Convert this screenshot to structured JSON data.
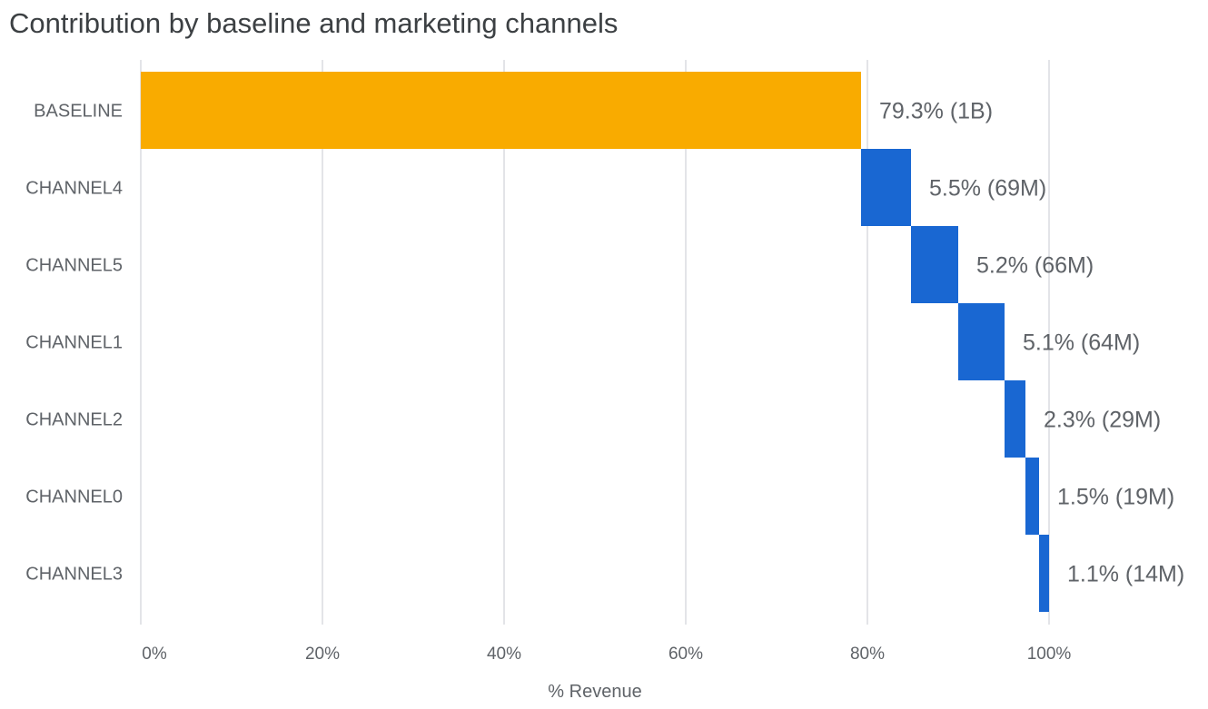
{
  "chart_data": {
    "type": "waterfall",
    "title": "Contribution by baseline and marketing channels",
    "xlabel": "% Revenue",
    "ylabel": "",
    "xlim": [
      0,
      100
    ],
    "x_ticks": [
      "0%",
      "20%",
      "40%",
      "60%",
      "80%",
      "100%"
    ],
    "x_tick_values": [
      0,
      20,
      40,
      60,
      80,
      100
    ],
    "grid": "vertical",
    "categories": [
      "BASELINE",
      "CHANNEL4",
      "CHANNEL5",
      "CHANNEL1",
      "CHANNEL2",
      "CHANNEL0",
      "CHANNEL3"
    ],
    "values": [
      79.3,
      5.5,
      5.2,
      5.1,
      2.3,
      1.5,
      1.1
    ],
    "data_labels": [
      "79.3% (1B)",
      "5.5% (69M)",
      "5.2% (66M)",
      "5.1% (64M)",
      "2.3% (29M)",
      "1.5% (19M)",
      "1.1% (14M)"
    ],
    "colors": {
      "baseline": "#F9AB00",
      "channel": "#1967D2",
      "text": "#5F6368",
      "grid": "#DADCE0"
    }
  }
}
